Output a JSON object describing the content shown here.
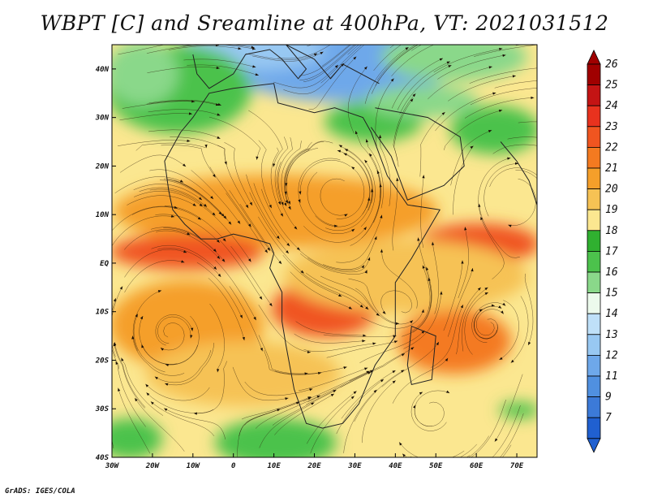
{
  "title": "WBPT [C] and Sreamline at 400hPa, VT: 2021031512",
  "footer": "GrADS: IGES/COLA",
  "map": {
    "variable": "WBPT",
    "units": "C",
    "level": "400hPa",
    "valid_time": "2021031512",
    "region": "Africa",
    "lon_range": [
      -30,
      75
    ],
    "lat_range": [
      -40,
      45
    ],
    "lat_ticks": [
      "40N",
      "30N",
      "20N",
      "10N",
      "EQ",
      "10S",
      "20S",
      "30S",
      "40S"
    ],
    "lon_ticks": [
      "30W",
      "20W",
      "10W",
      "0",
      "10E",
      "20E",
      "30E",
      "40E",
      "50E",
      "60E",
      "70E"
    ]
  },
  "colorbar": {
    "labels": [
      "26",
      "25",
      "24",
      "23",
      "22",
      "21",
      "20",
      "19",
      "18",
      "17",
      "16",
      "15",
      "14",
      "13",
      "12",
      "11",
      "9",
      "7"
    ],
    "colors": [
      "#a00000",
      "#c41414",
      "#e8321e",
      "#f05520",
      "#f47a20",
      "#f59f2a",
      "#f6c254",
      "#fbe790",
      "#30b030",
      "#4cc24c",
      "#8ad88a",
      "#ecfaec",
      "#bfe0f8",
      "#98c8f2",
      "#6ea8ea",
      "#5090e0",
      "#3c7ad8",
      "#2060d0"
    ]
  },
  "colors": {
    "tropical_core": "#f05520",
    "warm_band": "#f59f2a",
    "subtropics": "#fbe790",
    "midlat_green": "#4cc24c",
    "polar_blue": "#6ea8ea",
    "coast_lines": "#222222"
  }
}
